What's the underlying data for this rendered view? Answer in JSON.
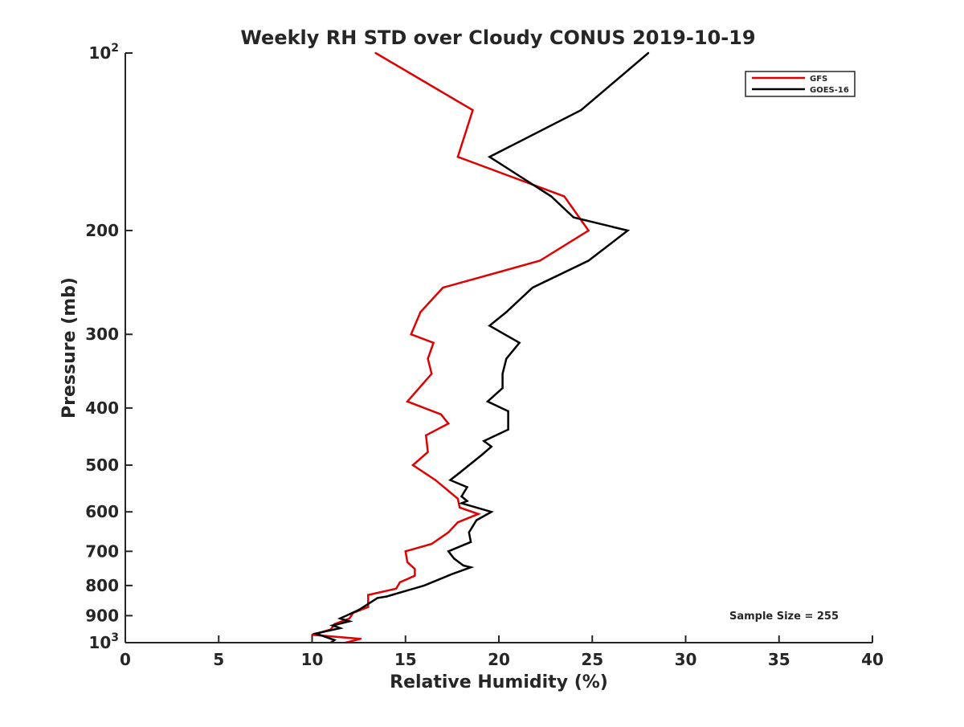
{
  "chart_data": {
    "type": "line",
    "title": "Weekly RH STD over Cloudy CONUS 2019-10-19",
    "xlabel": "Relative Humidity (%)",
    "ylabel": "Pressure (mb)",
    "xlim": [
      0,
      40
    ],
    "ylim": [
      100,
      1000
    ],
    "y_scale": "log",
    "y_reversed": true,
    "grid": false,
    "x_ticks": [
      0,
      5,
      10,
      15,
      20,
      25,
      30,
      35,
      40
    ],
    "y_ticks": [
      {
        "value": 100,
        "base": "10",
        "exp": "2"
      },
      {
        "value": 200,
        "label": "200"
      },
      {
        "value": 300,
        "label": "300"
      },
      {
        "value": 400,
        "label": "400"
      },
      {
        "value": 500,
        "label": "500"
      },
      {
        "value": 600,
        "label": "600"
      },
      {
        "value": 700,
        "label": "700"
      },
      {
        "value": 800,
        "label": "800"
      },
      {
        "value": 900,
        "label": "900"
      },
      {
        "value": 1000,
        "base": "10",
        "exp": "3"
      }
    ],
    "legend": {
      "position": "top-right"
    },
    "annotation": "Sample Size = 255",
    "series": [
      {
        "name": "GFS",
        "color": "#e00000",
        "points": [
          [
            13.4,
            100
          ],
          [
            18.6,
            125
          ],
          [
            17.8,
            150
          ],
          [
            23.5,
            175
          ],
          [
            24.8,
            200
          ],
          [
            22.2,
            225
          ],
          [
            17.0,
            250
          ],
          [
            15.8,
            275
          ],
          [
            15.3,
            300
          ],
          [
            16.5,
            310
          ],
          [
            16.2,
            330
          ],
          [
            16.4,
            350
          ],
          [
            15.1,
            390
          ],
          [
            16.9,
            410
          ],
          [
            17.3,
            425
          ],
          [
            16.1,
            445
          ],
          [
            16.2,
            475
          ],
          [
            15.4,
            500
          ],
          [
            16.6,
            530
          ],
          [
            17.8,
            570
          ],
          [
            17.9,
            590
          ],
          [
            18.9,
            605
          ],
          [
            17.8,
            625
          ],
          [
            17.3,
            650
          ],
          [
            16.4,
            680
          ],
          [
            15.0,
            700
          ],
          [
            15.1,
            730
          ],
          [
            15.5,
            750
          ],
          [
            15.5,
            770
          ],
          [
            14.7,
            790
          ],
          [
            14.5,
            810
          ],
          [
            13.0,
            830
          ],
          [
            13.0,
            870
          ],
          [
            12.2,
            890
          ],
          [
            12.0,
            910
          ],
          [
            11.2,
            930
          ],
          [
            11.0,
            950
          ],
          [
            10.0,
            970
          ],
          [
            12.6,
            985
          ],
          [
            11.8,
            1000
          ]
        ]
      },
      {
        "name": "GOES-16",
        "color": "#000000",
        "points": [
          [
            28.0,
            100
          ],
          [
            24.4,
            125
          ],
          [
            19.5,
            150
          ],
          [
            22.8,
            175
          ],
          [
            24.0,
            190
          ],
          [
            26.9,
            200
          ],
          [
            24.8,
            225
          ],
          [
            21.8,
            250
          ],
          [
            20.4,
            275
          ],
          [
            19.5,
            290
          ],
          [
            21.1,
            310
          ],
          [
            20.4,
            330
          ],
          [
            20.2,
            350
          ],
          [
            20.2,
            370
          ],
          [
            19.4,
            390
          ],
          [
            20.5,
            405
          ],
          [
            20.5,
            435
          ],
          [
            19.2,
            455
          ],
          [
            19.6,
            465
          ],
          [
            19.1,
            480
          ],
          [
            17.9,
            515
          ],
          [
            17.4,
            530
          ],
          [
            18.3,
            545
          ],
          [
            18.0,
            565
          ],
          [
            18.3,
            575
          ],
          [
            18.0,
            580
          ],
          [
            19.6,
            600
          ],
          [
            18.8,
            620
          ],
          [
            18.4,
            650
          ],
          [
            18.5,
            675
          ],
          [
            17.3,
            700
          ],
          [
            17.6,
            720
          ],
          [
            18.1,
            740
          ],
          [
            18.5,
            745
          ],
          [
            17.5,
            765
          ],
          [
            16.0,
            800
          ],
          [
            14.0,
            835
          ],
          [
            13.5,
            840
          ],
          [
            12.5,
            880
          ],
          [
            11.5,
            910
          ],
          [
            12.0,
            920
          ],
          [
            11.1,
            935
          ],
          [
            11.5,
            945
          ],
          [
            10.2,
            965
          ],
          [
            11.2,
            990
          ],
          [
            11.0,
            1000
          ]
        ]
      }
    ]
  }
}
